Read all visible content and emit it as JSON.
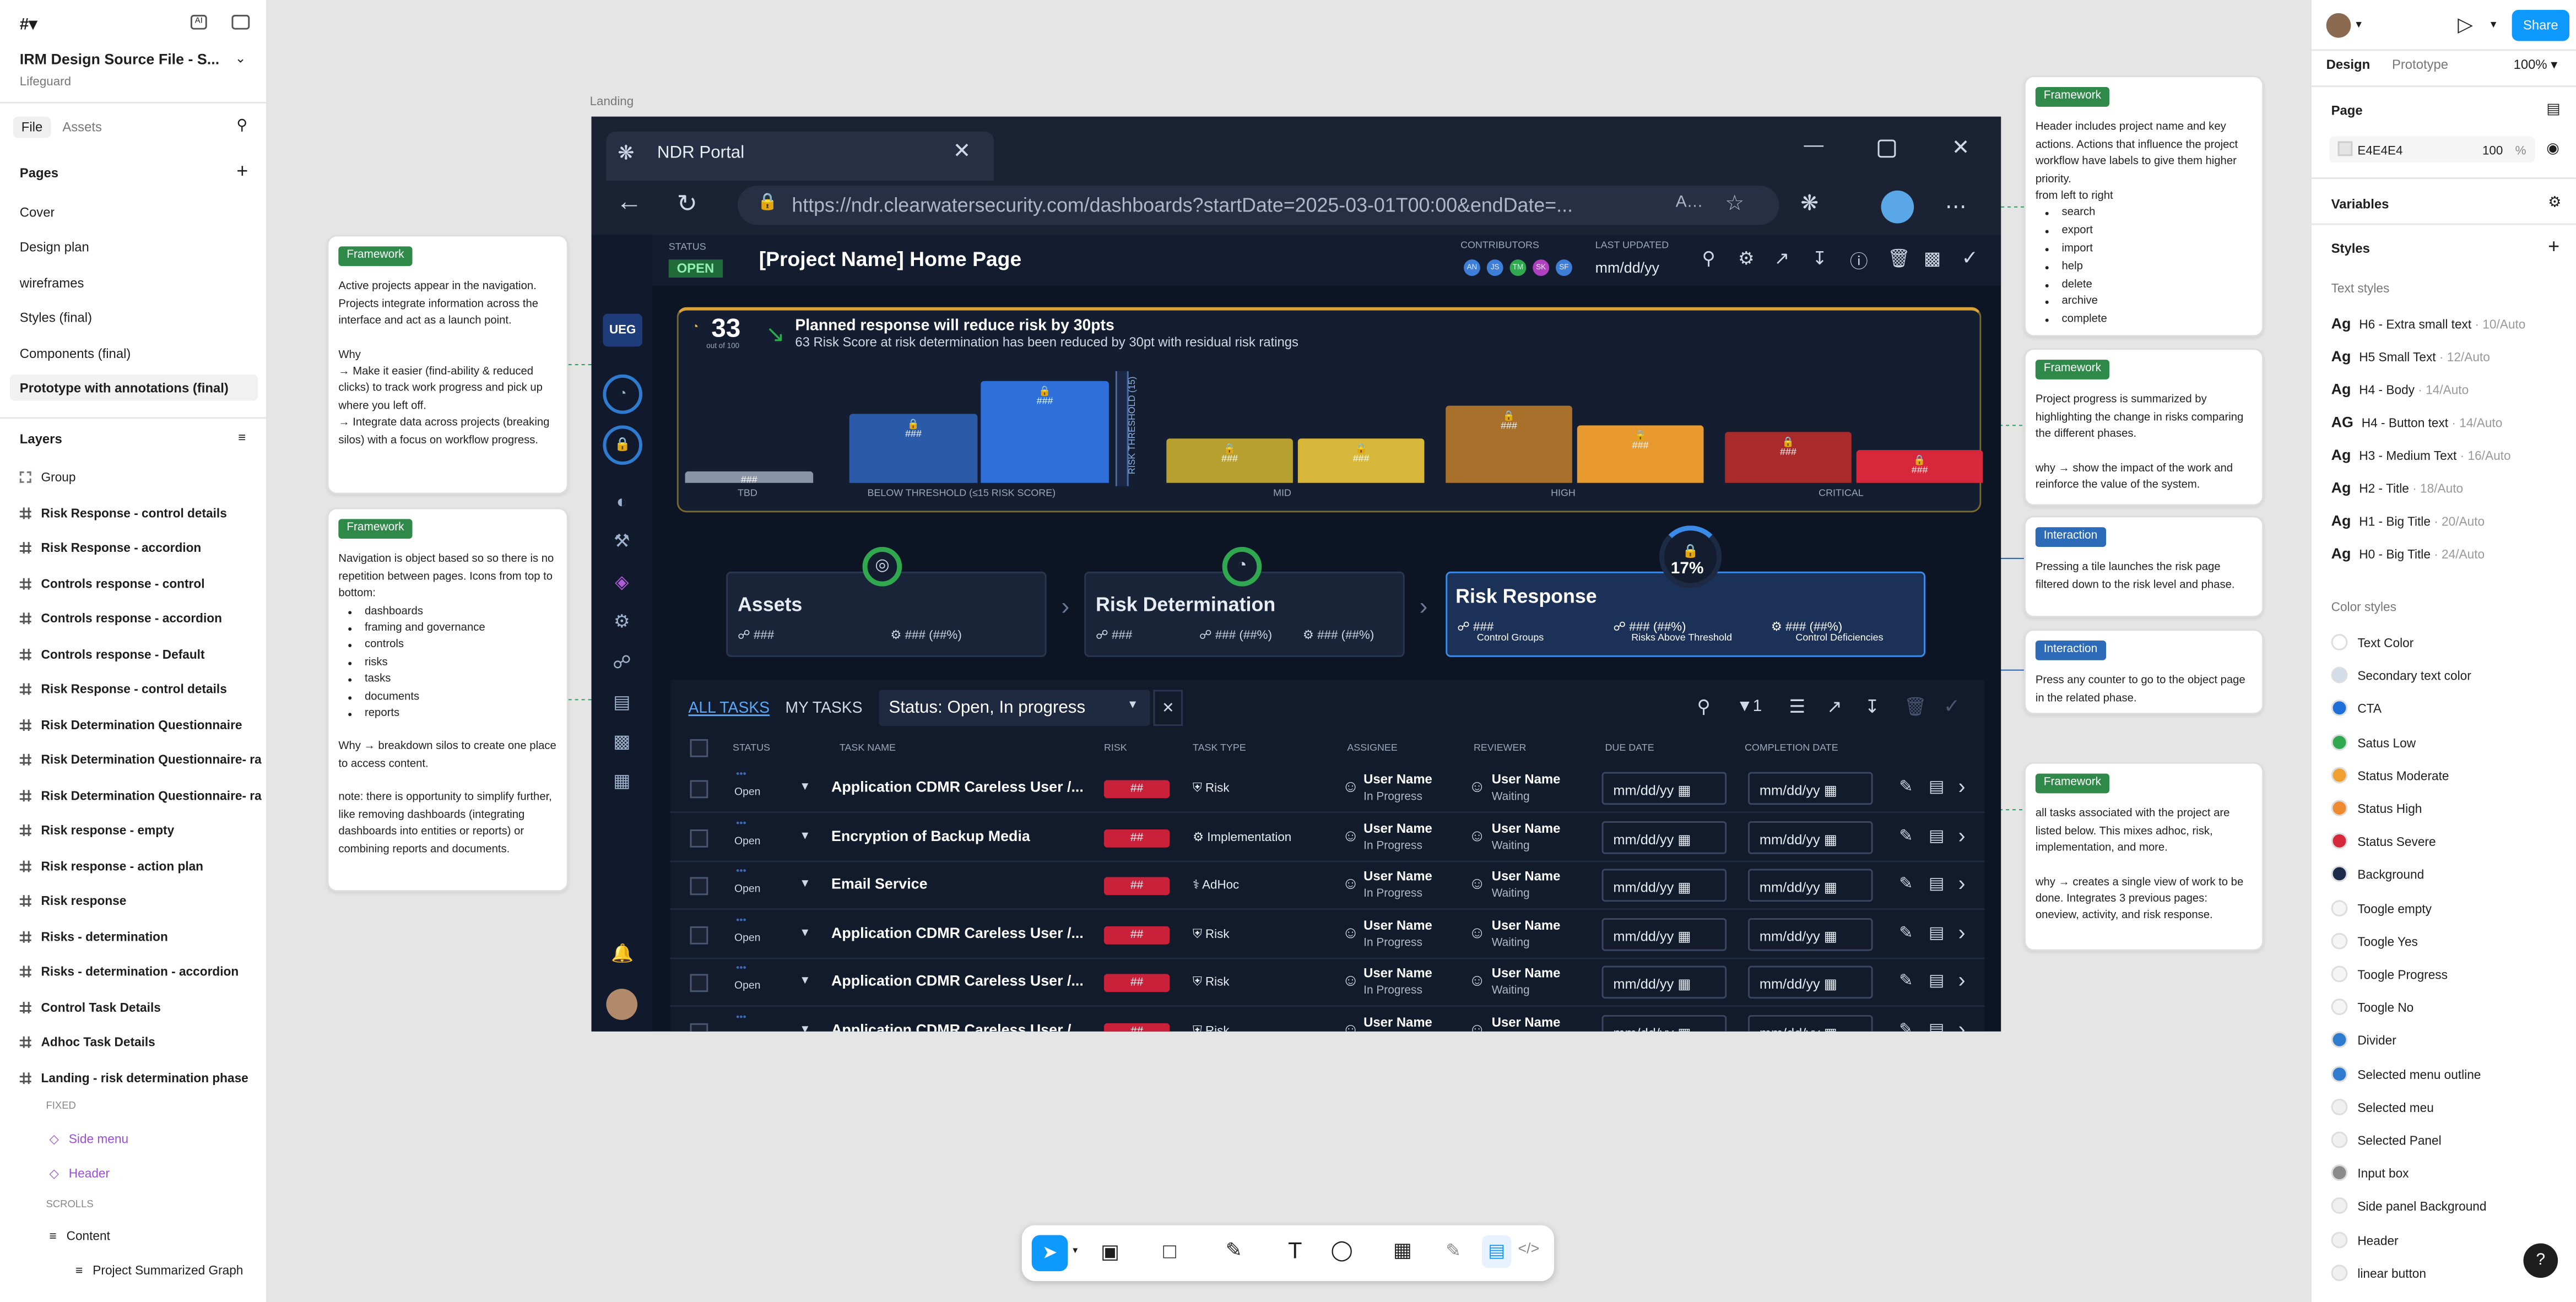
{
  "app": {
    "file_title": "IRM Design Source File - S...",
    "team": "Lifeguard",
    "canvas_bg": "#E5E5E5"
  },
  "left_panel": {
    "tab_file": "File",
    "tab_assets": "Assets",
    "pages_title": "Pages",
    "pages": [
      "Cover",
      "Design plan",
      "wireframes",
      "Styles (final)",
      "Components (final)",
      "Prototype with annotations (final)"
    ],
    "layers_title": "Layers",
    "layers": [
      "Group",
      "Risk Response - control details",
      "Risk Response - accordion",
      "Controls response - control",
      "Controls response - accordion",
      "Controls response - Default",
      "Risk Response - control details",
      "Risk Determination Questionnaire",
      "Risk Determination Questionnaire- ra",
      "Risk Determination Questionnaire- ra",
      "Risk response - empty",
      "Risk response - action plan",
      "Risk response",
      "Risks - determination",
      "Risks - determination - accordion",
      "Control Task Details",
      "Adhoc Task Details",
      "Landing - risk determination phase"
    ],
    "fixed_label": "FIXED",
    "fixed_items": [
      "Side menu",
      "Header"
    ],
    "scrolls_label": "SCROLLS",
    "content": "Content",
    "summary": "Project Summarized Graph"
  },
  "right_panel": {
    "tab_design": "Design",
    "tab_prototype": "Prototype",
    "zoom": "100%",
    "share": "Share",
    "page_label": "Page",
    "page_color": "E4E4E4",
    "page_opacity": "100",
    "page_pct": "%",
    "variables": "Variables",
    "styles": "Styles",
    "text_styles_label": "Text styles",
    "text_styles": [
      {
        "ag": "Ag",
        "name": "H6 - Extra small text",
        "size": " · 10/Auto"
      },
      {
        "ag": "Ag",
        "name": "H5 Small Text",
        "size": " · 12/Auto"
      },
      {
        "ag": "Ag",
        "name": "H4 - Body",
        "size": " · 14/Auto"
      },
      {
        "ag": "AG",
        "name": "H4 - Button text",
        "size": " · 14/Auto"
      },
      {
        "ag": "Ag",
        "name": "H3 - Medium Text",
        "size": " · 16/Auto"
      },
      {
        "ag": "Ag",
        "name": "H2 - Title",
        "size": " · 18/Auto"
      },
      {
        "ag": "Ag",
        "name": "H1 - Big Title",
        "size": " · 20/Auto"
      },
      {
        "ag": "Ag",
        "name": "H0 - Big Title",
        "size": " · 24/Auto"
      }
    ],
    "color_styles_label": "Color styles",
    "color_styles": [
      {
        "name": "Text Color",
        "color": "#FFFFFF"
      },
      {
        "name": "Secondary text color",
        "color": "#D3DDEA"
      },
      {
        "name": "CTA",
        "color": "#1E6FD9"
      },
      {
        "name": "Satus Low",
        "color": "#2FA84F"
      },
      {
        "name": "Status Moderate",
        "color": "#F0A02E"
      },
      {
        "name": "Status High",
        "color": "#F08A2E"
      },
      {
        "name": "Status Severe",
        "color": "#D6283A"
      },
      {
        "name": "Background",
        "color": "#1C2B4A"
      },
      {
        "name": "Toogle empty",
        "color": "#F5F5F5"
      },
      {
        "name": "Toogle Yes",
        "color": "#F5F5F5"
      },
      {
        "name": "Toogle Progress",
        "color": "#F5F5F5"
      },
      {
        "name": "Toogle No",
        "color": "#F5F5F5"
      },
      {
        "name": "Divider",
        "color": "#2E7BD0"
      },
      {
        "name": "Selected menu outline",
        "color": "#2E7BD0"
      },
      {
        "name": "Selected meu",
        "color": "#F0F0F0"
      },
      {
        "name": "Selected Panel",
        "color": "#F0F0F0"
      },
      {
        "name": "Input box",
        "color": "#8A8A8A"
      },
      {
        "name": "Side panel Background",
        "color": "#F0F0F0"
      },
      {
        "name": "Header",
        "color": "#F0F0F0"
      },
      {
        "name": "linear button",
        "color": "#F0F0F0"
      }
    ]
  },
  "canvas": {
    "frame_label": "Landing"
  },
  "browser": {
    "tab_title": "NDR Portal",
    "url": "https://ndr.clearwatersecurity.com/dashboards?startDate=2025-03-01T00:00&endDate=..."
  },
  "portal": {
    "status_label": "STATUS",
    "status": "OPEN",
    "title": "[Project Name] Home Page",
    "contributors_label": "CONTRIBUTORS",
    "contributors": [
      "AN",
      "JS",
      "TM",
      "SK",
      "SF"
    ],
    "last_updated_label": "LAST UPDATED",
    "last_updated": "mm/dd/yy",
    "org": "UEG"
  },
  "summary": {
    "score": "33",
    "score_sub": "out of 100",
    "headline": "Planned response will reduce risk by 30pts",
    "detail": "63 Risk Score at risk determination has been reduced by 30pt with residual risk ratings",
    "threshold": "RISK THRESHOLD (15)",
    "bar_value": "###",
    "groups": [
      "TBD",
      "BELOW THRESHOLD (≤15 RISK SCORE)",
      "MID",
      "HIGH",
      "CRITICAL"
    ]
  },
  "chart_data": {
    "type": "bar",
    "categories": [
      "TBD",
      "Below threshold",
      "Below threshold",
      "Mid",
      "Mid",
      "High",
      "High",
      "Critical",
      "Critical"
    ],
    "series": [
      {
        "name": "",
        "values": [
          0.1,
          0.6,
          0.88,
          0.38,
          0.38,
          0.67,
          0.5,
          0.44,
          0.28
        ]
      }
    ]
  },
  "phases": [
    {
      "title": "Assets",
      "stats": [
        "###",
        "### (##%)"
      ],
      "labels": [
        "",
        ""
      ]
    },
    {
      "title": "Risk Determination",
      "stats": [
        "###",
        "### (##%)",
        "### (##%)"
      ],
      "labels": [
        "",
        "",
        ""
      ]
    },
    {
      "title": "Risk Response",
      "pct": "17%",
      "stats": [
        "###",
        "### (##%)",
        "### (##%)"
      ],
      "labels": [
        "Control Groups",
        "Risks Above Threshold",
        "Control Deficiencies"
      ]
    }
  ],
  "tasks": {
    "tab_all": "ALL TASKS",
    "tab_my": "MY TASKS",
    "filter": "Status: Open, In progress",
    "filter_count": "1",
    "headers": [
      "STATUS",
      "TASK NAME",
      "RISK",
      "TASK TYPE",
      "ASSIGNEE",
      "REVIEWER",
      "DUE DATE",
      "COMPLETION DATE"
    ],
    "rows": [
      {
        "status": "Open",
        "name": "Application CDMR Careless User /...",
        "risk": "##",
        "type": "Risk",
        "assignee": "User Name",
        "assignee_status": "In Progress",
        "reviewer": "User Name",
        "reviewer_status": "Waiting",
        "due": "mm/dd/yy",
        "done": "mm/dd/yy"
      },
      {
        "status": "Open",
        "name": "Encryption of Backup Media",
        "risk": "##",
        "type": "Implementation",
        "assignee": "User Name",
        "assignee_status": "In Progress",
        "reviewer": "User Name",
        "reviewer_status": "Waiting",
        "due": "mm/dd/yy",
        "done": "mm/dd/yy"
      },
      {
        "status": "Open",
        "name": "Email Service",
        "risk": "##",
        "type": "AdHoc",
        "assignee": "User Name",
        "assignee_status": "In Progress",
        "reviewer": "User Name",
        "reviewer_status": "Waiting",
        "due": "mm/dd/yy",
        "done": "mm/dd/yy"
      },
      {
        "status": "Open",
        "name": "Application CDMR Careless User /...",
        "risk": "##",
        "type": "Risk",
        "assignee": "User Name",
        "assignee_status": "In Progress",
        "reviewer": "User Name",
        "reviewer_status": "Waiting",
        "due": "mm/dd/yy",
        "done": "mm/dd/yy"
      },
      {
        "status": "Open",
        "name": "Application CDMR Careless User /...",
        "risk": "##",
        "type": "Risk",
        "assignee": "User Name",
        "assignee_status": "In Progress",
        "reviewer": "User Name",
        "reviewer_status": "Waiting",
        "due": "mm/dd/yy",
        "done": "mm/dd/yy"
      },
      {
        "status": "",
        "name": "Application CDMR Careless User /...",
        "risk": "##",
        "type": "Risk",
        "assignee": "User Name",
        "assignee_status": "",
        "reviewer": "User Name",
        "reviewer_status": "",
        "due": "mm/dd/yy",
        "done": "mm/dd/yy"
      }
    ]
  },
  "notes": {
    "n1": {
      "tag": "Framework",
      "p1": "Active projects appear in the navigation. Projects integrate information across the interface and act as a launch point.",
      "p2": "Why",
      "p3": "→ Make it easier (find-ability & reduced clicks) to track work progress and pick up where you left off.",
      "p4": "→ Integrate data across projects (breaking silos) with a focus on workflow progress."
    },
    "n2": {
      "tag": "Framework",
      "p1": "Navigation is object based so so there is no repetition between pages. Icons from top to bottom:",
      "items": [
        "dashboards",
        "framing and governance",
        "controls",
        "risks",
        "tasks",
        "documents",
        "reports"
      ],
      "p2": "Why → breakdown silos to create one place to access content.",
      "p3": "note: there is opportunity to simplify further, like removing dashboards (integrating dashboards into entities or reports) or combining reports and documents."
    },
    "n3": {
      "tag": "Framework",
      "p1": "Header includes project name and key actions. Actions that influence the project workflow have labels to give them higher priority.",
      "p2": "from left to right",
      "items": [
        "search",
        "export",
        "import",
        "help",
        "delete",
        "archive",
        "complete"
      ]
    },
    "n4": {
      "tag": "Framework",
      "p1": "Project progress is summarized  by highlighting the change in risks comparing the different phases.",
      "p2": "why → show the impact of the work and reinforce the value of the system."
    },
    "n5": {
      "tag": "Interaction",
      "p1": "Pressing a tile launches the risk page filtered down to the risk level and phase."
    },
    "n6": {
      "tag": "Interaction",
      "p1": "Press any counter to go to the object page in the related phase."
    },
    "n7": {
      "tag": "Framework",
      "p1": "all tasks associated with the project are listed below. This mixes adhoc, risk, implementation, and more.",
      "p2": "why → creates a single view of work to be done. Integrates 3 previous pages: oneview, activity, and risk response."
    }
  }
}
